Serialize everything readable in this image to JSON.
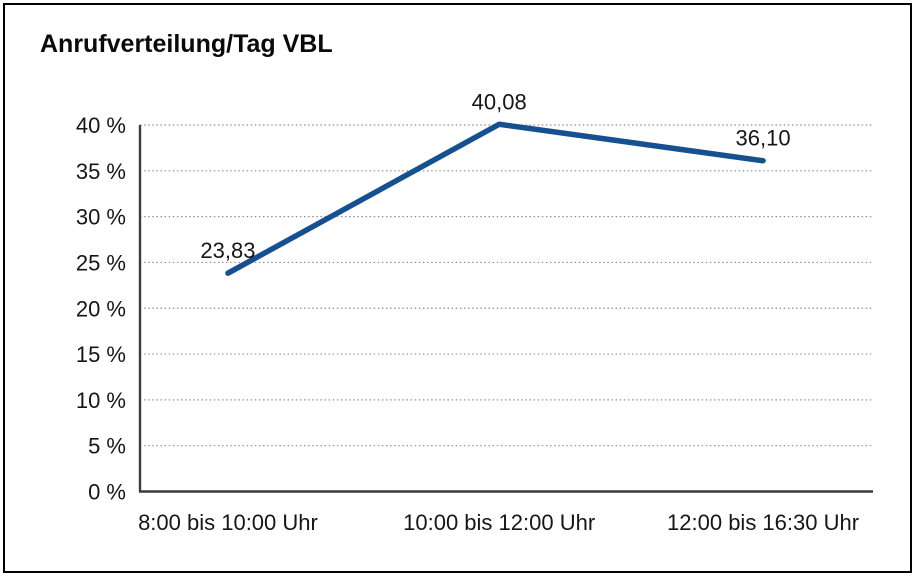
{
  "chart_data": {
    "type": "line",
    "title": "Anrufverteilung/Tag VBL",
    "categories": [
      "8:00 bis 10:00 Uhr",
      "10:00 bis 12:00 Uhr",
      "12:00 bis 16:30 Uhr"
    ],
    "series": [
      {
        "values": [
          23.83,
          40.08,
          36.1
        ],
        "value_labels": [
          "23,83",
          "40,08",
          "36,10"
        ]
      }
    ],
    "xlabel": "",
    "ylabel": "",
    "ylim": [
      0,
      40
    ],
    "y_ticks": [
      {
        "value": 0,
        "label": "0 %"
      },
      {
        "value": 5,
        "label": "5 %"
      },
      {
        "value": 10,
        "label": "10 %"
      },
      {
        "value": 15,
        "label": "15 %"
      },
      {
        "value": 20,
        "label": "20 %"
      },
      {
        "value": 25,
        "label": "25 %"
      },
      {
        "value": 30,
        "label": "30 %"
      },
      {
        "value": 35,
        "label": "35 %"
      },
      {
        "value": 40,
        "label": "40 %"
      }
    ],
    "grid": "horizontal-dotted",
    "legend": "none",
    "colors": {
      "line": "#17508f",
      "grid": "#8f8f8f",
      "axis": "#3c3c3c",
      "text": "#161616",
      "background": "#ffffff",
      "border": "#000000"
    }
  }
}
